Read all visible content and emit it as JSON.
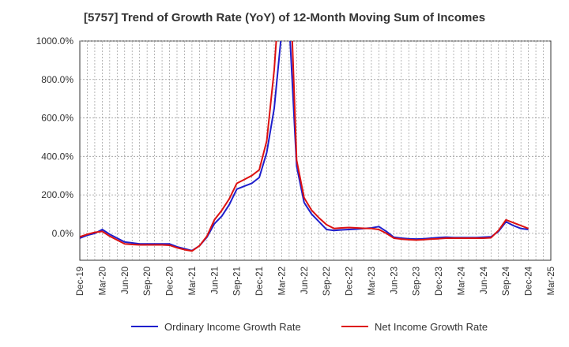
{
  "chart_data": {
    "type": "line",
    "title": "[5757]  Trend of Growth Rate (YoY) of 12-Month Moving Sum of Incomes",
    "ylim": [
      -140,
      1000
    ],
    "y_ticks": [
      0,
      200,
      400,
      600,
      800,
      1000
    ],
    "y_tick_labels": [
      "0.0%",
      "200.0%",
      "400.0%",
      "600.0%",
      "800.0%",
      "1000.0%"
    ],
    "x_tick_labels": [
      "Dec-19",
      "Mar-20",
      "Jun-20",
      "Sep-20",
      "Dec-20",
      "Mar-21",
      "Jun-21",
      "Sep-21",
      "Dec-21",
      "Mar-22",
      "Jun-22",
      "Sep-22",
      "Dec-22",
      "Mar-23",
      "Jun-23",
      "Sep-23",
      "Dec-23",
      "Mar-24",
      "Jun-24",
      "Sep-24",
      "Dec-24",
      "Mar-25"
    ],
    "x": [
      "Dec-19",
      "Jan-20",
      "Feb-20",
      "Mar-20",
      "Apr-20",
      "May-20",
      "Jun-20",
      "Jul-20",
      "Aug-20",
      "Sep-20",
      "Oct-20",
      "Nov-20",
      "Dec-20",
      "Jan-21",
      "Feb-21",
      "Mar-21",
      "Apr-21",
      "May-21",
      "Jun-21",
      "Jul-21",
      "Aug-21",
      "Sep-21",
      "Oct-21",
      "Nov-21",
      "Dec-21",
      "Jan-22",
      "Feb-22",
      "Mar-22",
      "Apr-22",
      "May-22",
      "Jun-22",
      "Jul-22",
      "Aug-22",
      "Sep-22",
      "Oct-22",
      "Nov-22",
      "Dec-22",
      "Jan-23",
      "Feb-23",
      "Mar-23",
      "Apr-23",
      "May-23",
      "Jun-23",
      "Jul-23",
      "Aug-23",
      "Sep-23",
      "Oct-23",
      "Nov-23",
      "Dec-23",
      "Jan-24",
      "Feb-24",
      "Mar-24",
      "Apr-24",
      "May-24",
      "Jun-24",
      "Jul-24",
      "Aug-24",
      "Sep-24",
      "Oct-24",
      "Nov-24",
      "Dec-24"
    ],
    "grid": true,
    "legend_position": "bottom",
    "series": [
      {
        "name": "Ordinary Income Growth Rate",
        "color": "#1f1fcc",
        "values": [
          -25,
          -10,
          0,
          20,
          -5,
          -25,
          -45,
          -50,
          -55,
          -55,
          -55,
          -55,
          -55,
          -70,
          -80,
          -90,
          -65,
          -20,
          50,
          90,
          150,
          230,
          245,
          260,
          290,
          420,
          650,
          1050,
          1100,
          350,
          160,
          100,
          60,
          20,
          15,
          18,
          20,
          22,
          25,
          28,
          35,
          10,
          -20,
          -25,
          -28,
          -30,
          -28,
          -25,
          -22,
          -20,
          -22,
          -22,
          -22,
          -22,
          -20,
          -18,
          10,
          60,
          40,
          25,
          20
        ]
      },
      {
        "name": "Net Income Growth Rate",
        "color": "#dd1111",
        "values": [
          -18,
          -5,
          5,
          10,
          -15,
          -35,
          -55,
          -58,
          -60,
          -60,
          -60,
          -60,
          -62,
          -75,
          -85,
          -92,
          -65,
          -15,
          70,
          120,
          180,
          260,
          280,
          300,
          330,
          480,
          850,
          1400,
          1450,
          380,
          185,
          120,
          80,
          45,
          25,
          28,
          30,
          28,
          26,
          25,
          20,
          0,
          -25,
          -30,
          -33,
          -35,
          -33,
          -30,
          -28,
          -25,
          -25,
          -25,
          -25,
          -25,
          -25,
          -23,
          15,
          70,
          55,
          40,
          25
        ]
      }
    ]
  }
}
